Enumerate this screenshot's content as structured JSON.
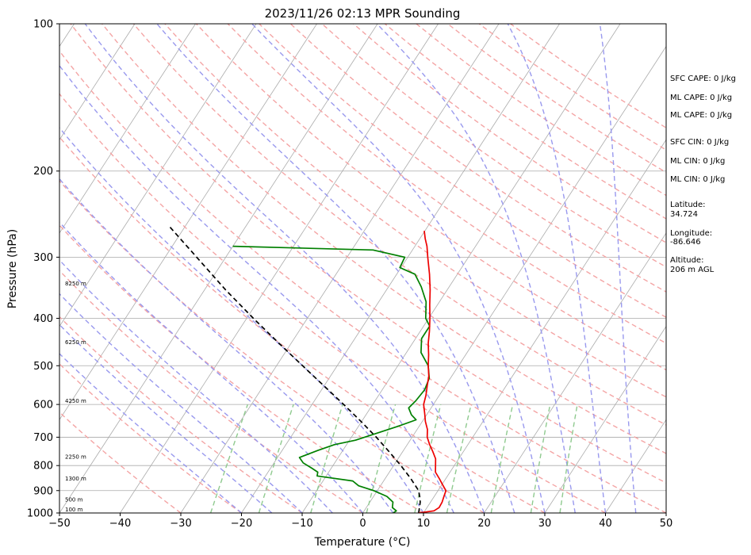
{
  "chart_data": {
    "type": "skew-t",
    "title": "2023/11/26 02:13 MPR Sounding",
    "xlabel": "Temperature (°C)",
    "ylabel": "Pressure (hPa)",
    "xlim": [
      -50,
      50
    ],
    "ylim": [
      1000,
      100
    ],
    "y_scale": "log",
    "x_ticks": [
      "−50",
      "−40",
      "−30",
      "−20",
      "−10",
      "0",
      "10",
      "20",
      "30",
      "40",
      "50"
    ],
    "y_ticks": [
      {
        "p": 100,
        "label": "100"
      },
      {
        "p": 200,
        "label": "200"
      },
      {
        "p": 300,
        "label": "300"
      },
      {
        "p": 400,
        "label": "400"
      },
      {
        "p": 500,
        "label": "500"
      },
      {
        "p": 600,
        "label": "600"
      },
      {
        "p": 700,
        "label": "700"
      },
      {
        "p": 800,
        "label": "800"
      },
      {
        "p": 900,
        "label": "900"
      },
      {
        "p": 1000,
        "label": "1000"
      }
    ],
    "grid": true,
    "background_lines": {
      "isotherm_color": "#aaaaaa",
      "dry_adiabat_color": "#f4a5a5",
      "moist_adiabat_color": "#9999ee",
      "mixing_ratio_color": "#8fca8f"
    },
    "temperature": {
      "color": "#ee0000",
      "points": [
        [
          1000,
          9.2
        ],
        [
          990,
          11.5
        ],
        [
          975,
          12.0
        ],
        [
          950,
          11.9
        ],
        [
          925,
          11.6
        ],
        [
          900,
          11.3
        ],
        [
          875,
          10.1
        ],
        [
          850,
          8.9
        ],
        [
          825,
          7.6
        ],
        [
          800,
          6.9
        ],
        [
          775,
          6.2
        ],
        [
          750,
          5.0
        ],
        [
          725,
          3.7
        ],
        [
          700,
          2.5
        ],
        [
          675,
          1.7
        ],
        [
          650,
          0.5
        ],
        [
          625,
          -0.5
        ],
        [
          600,
          -1.6
        ],
        [
          575,
          -2.2
        ],
        [
          550,
          -3.0
        ],
        [
          525,
          -3.8
        ],
        [
          500,
          -5.0
        ],
        [
          475,
          -6.1
        ],
        [
          450,
          -7.4
        ],
        [
          425,
          -8.5
        ],
        [
          400,
          -9.8
        ],
        [
          375,
          -11.3
        ],
        [
          350,
          -12.8
        ],
        [
          325,
          -14.6
        ],
        [
          300,
          -16.7
        ],
        [
          285,
          -18.0
        ],
        [
          275,
          -19.1
        ],
        [
          265,
          -20.1
        ]
      ]
    },
    "dewpoint": {
      "color": "#008000",
      "points": [
        [
          1000,
          5.0
        ],
        [
          990,
          5.3
        ],
        [
          975,
          4.3
        ],
        [
          950,
          3.8
        ],
        [
          925,
          2.2
        ],
        [
          900,
          -0.6
        ],
        [
          880,
          -3.6
        ],
        [
          860,
          -5.1
        ],
        [
          840,
          -11.5
        ],
        [
          825,
          -11.8
        ],
        [
          810,
          -13.2
        ],
        [
          790,
          -15.2
        ],
        [
          770,
          -16.4
        ],
        [
          745,
          -14.1
        ],
        [
          725,
          -12.0
        ],
        [
          710,
          -9.0
        ],
        [
          690,
          -6.6
        ],
        [
          665,
          -3.5
        ],
        [
          645,
          -1.2
        ],
        [
          630,
          -2.5
        ],
        [
          610,
          -3.7
        ],
        [
          590,
          -3.3
        ],
        [
          560,
          -3.0
        ],
        [
          530,
          -3.5
        ],
        [
          500,
          -5.0
        ],
        [
          470,
          -7.6
        ],
        [
          440,
          -9.0
        ],
        [
          415,
          -9.0
        ],
        [
          400,
          -10.5
        ],
        [
          370,
          -12.2
        ],
        [
          345,
          -14.6
        ],
        [
          325,
          -17.0
        ],
        [
          315,
          -20.2
        ],
        [
          300,
          -20.5
        ],
        [
          290,
          -26.5
        ],
        [
          285,
          -50.0
        ]
      ]
    },
    "parcel": {
      "color": "#000000",
      "points": [
        [
          1000,
          9.2
        ],
        [
          950,
          8.3
        ],
        [
          925,
          7.6
        ],
        [
          900,
          6.8
        ],
        [
          850,
          4.2
        ],
        [
          800,
          1.2
        ],
        [
          750,
          -2.2
        ],
        [
          700,
          -5.9
        ],
        [
          650,
          -10.1
        ],
        [
          600,
          -14.8
        ],
        [
          550,
          -20.0
        ],
        [
          500,
          -25.7
        ],
        [
          450,
          -32.0
        ],
        [
          400,
          -38.9
        ],
        [
          350,
          -46.5
        ],
        [
          300,
          -54.8
        ],
        [
          260,
          -62.5
        ]
      ]
    },
    "height_labels": [
      {
        "p": 1000,
        "text": "100 m"
      },
      {
        "p": 955,
        "text": "500 m"
      },
      {
        "p": 865,
        "text": "1300 m"
      },
      {
        "p": 780,
        "text": "2250 m"
      },
      {
        "p": 600,
        "text": "4250 m"
      },
      {
        "p": 455,
        "text": "6250 m"
      },
      {
        "p": 345,
        "text": "8250 m"
      }
    ],
    "side_text": [
      "SFC CAPE: 0 J/kg",
      "ML CAPE: 0 J/kg",
      "ML CAPE: 0 J/kg",
      "SFC CIN: 0 J/kg",
      "ML CIN: 0 J/kg",
      "ML CIN: 0 J/kg",
      "Latitude:",
      "34.724",
      "Longitude:",
      "-86.646",
      "Altitude:",
      "206 m AGL"
    ]
  }
}
